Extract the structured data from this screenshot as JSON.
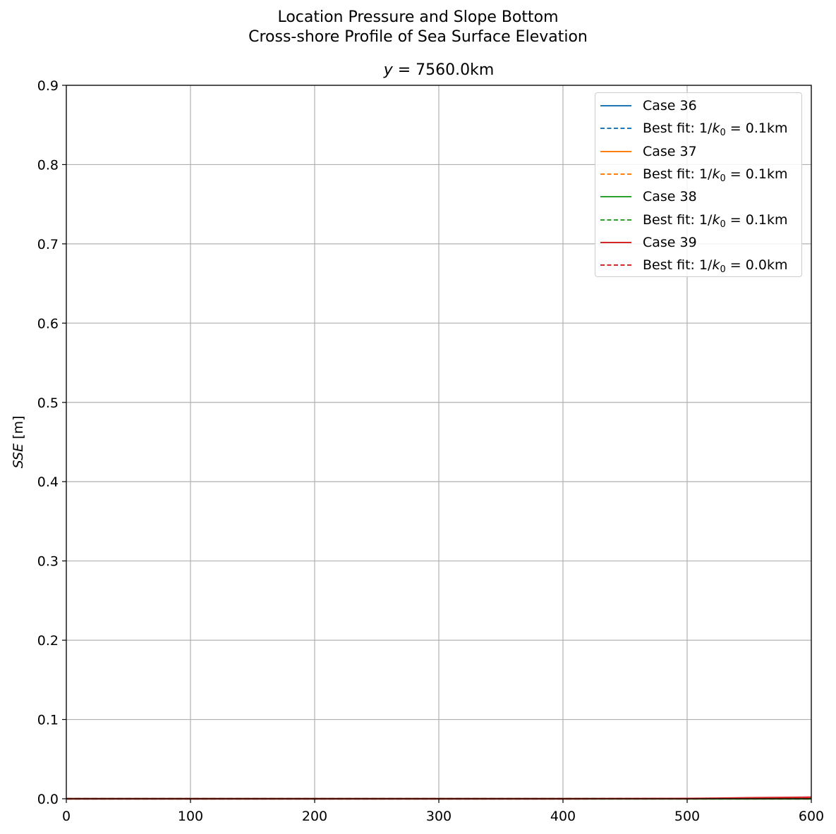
{
  "chart_data": {
    "type": "line",
    "suptitle_line1": "Location Pressure and Slope Bottom",
    "suptitle_line2": "Cross-shore Profile of Sea Surface Elevation",
    "title_var": "y",
    "title_value": "= 7560.0km",
    "ylabel_var": "SSE",
    "ylabel_unit": " [m]",
    "xlabel": "",
    "xlim": [
      0,
      600
    ],
    "ylim": [
      0,
      0.9
    ],
    "grid": true,
    "legend_position": "top-right",
    "xticks": [
      0,
      100,
      200,
      300,
      400,
      500,
      600
    ],
    "xtick_labels": [
      "0",
      "100",
      "200",
      "300",
      "400",
      "500",
      "600"
    ],
    "yticks": [
      0,
      0.1,
      0.2,
      0.3,
      0.4,
      0.5,
      0.6,
      0.7,
      0.8,
      0.9
    ],
    "ytick_labels": [
      "0.0",
      "0.1",
      "0.2",
      "0.3",
      "0.4",
      "0.5",
      "0.6",
      "0.7",
      "0.8",
      "0.9"
    ],
    "series": [
      {
        "name": "Case 36",
        "style": "solid",
        "color": "#1f77b4",
        "x": [
          0,
          100,
          200,
          300,
          400,
          500,
          550,
          600
        ],
        "y": [
          0,
          0,
          0,
          0,
          0,
          0,
          0,
          0
        ]
      },
      {
        "name": "Best fit: 1/k0 = 0.1km",
        "label_prefix": "Best fit: 1/",
        "label_var": "k",
        "label_sub": "0",
        "label_suffix": " = 0.1km",
        "style": "dashed",
        "color": "#1f77b4",
        "x": [
          0,
          100,
          200,
          300,
          400,
          500,
          550,
          600
        ],
        "y": [
          0,
          0,
          0,
          0,
          0,
          0,
          0,
          0
        ]
      },
      {
        "name": "Case 37",
        "style": "solid",
        "color": "#ff7f0e",
        "x": [
          0,
          100,
          200,
          300,
          400,
          500,
          550,
          600
        ],
        "y": [
          0,
          0,
          0,
          0,
          0,
          0,
          0,
          0
        ]
      },
      {
        "name": "Best fit: 1/k0 = 0.1km",
        "label_prefix": "Best fit: 1/",
        "label_var": "k",
        "label_sub": "0",
        "label_suffix": " = 0.1km",
        "style": "dashed",
        "color": "#ff7f0e",
        "x": [
          0,
          100,
          200,
          300,
          400,
          500,
          550,
          600
        ],
        "y": [
          0,
          0,
          0,
          0,
          0,
          0,
          0,
          0
        ]
      },
      {
        "name": "Case 38",
        "style": "solid",
        "color": "#2ca02c",
        "x": [
          0,
          100,
          200,
          300,
          400,
          500,
          550,
          600
        ],
        "y": [
          0,
          0,
          0,
          0,
          0,
          0,
          0,
          0
        ]
      },
      {
        "name": "Best fit: 1/k0 = 0.1km",
        "label_prefix": "Best fit: 1/",
        "label_var": "k",
        "label_sub": "0",
        "label_suffix": " = 0.1km",
        "style": "dashed",
        "color": "#2ca02c",
        "x": [
          0,
          100,
          200,
          300,
          400,
          500,
          550,
          600
        ],
        "y": [
          0,
          0,
          0,
          0,
          0,
          0,
          0,
          0
        ]
      },
      {
        "name": "Case 39",
        "style": "solid",
        "color": "#d62728",
        "x": [
          0,
          100,
          200,
          300,
          400,
          500,
          550,
          600
        ],
        "y": [
          0,
          0,
          0,
          0,
          0,
          0.0003,
          0.0012,
          0.002
        ]
      },
      {
        "name": "Best fit: 1/k0 = 0.0km",
        "label_prefix": "Best fit: 1/",
        "label_var": "k",
        "label_sub": "0",
        "label_suffix": " = 0.0km",
        "style": "dashed",
        "color": "#d62728",
        "x": [
          0,
          100,
          200,
          300,
          400,
          500,
          550,
          600
        ],
        "y": [
          0,
          0,
          0,
          0,
          0,
          0.0002,
          0.0008,
          0.0015
        ]
      }
    ]
  }
}
